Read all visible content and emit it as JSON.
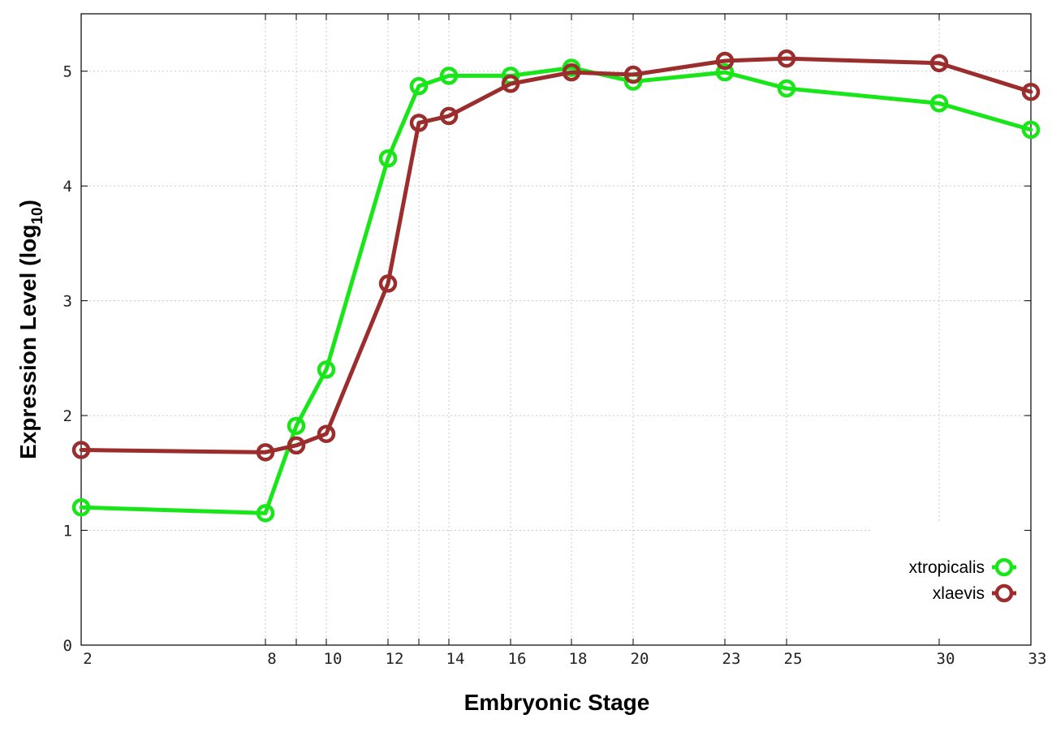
{
  "chart_data": {
    "type": "line",
    "title": "",
    "xlabel": "Embryonic Stage",
    "ylabel": {
      "text": "Expression Level (log",
      "subscript": "10",
      "suffix": ")"
    },
    "x_categories": [
      "2",
      "8",
      "9",
      "10",
      "12",
      "13",
      "14",
      "16",
      "18",
      "20",
      "23",
      "25",
      "30",
      "33"
    ],
    "x_tick_labels": [
      "2",
      "8",
      "10",
      "12",
      "14",
      "16",
      "18",
      "20",
      "23",
      "25",
      "30",
      "33"
    ],
    "y_ticks": [
      "0",
      "1",
      "2",
      "3",
      "4",
      "5"
    ],
    "ylim": [
      0,
      5.5
    ],
    "grid": true,
    "legend_position": "bottom-right",
    "series": [
      {
        "name": "xtropicalis",
        "color": "#19e619",
        "x": [
          "2",
          "8",
          "9",
          "10",
          "12",
          "13",
          "14",
          "16",
          "18",
          "20",
          "23",
          "25",
          "30",
          "33"
        ],
        "values": [
          1.2,
          1.15,
          1.91,
          2.4,
          4.24,
          4.87,
          4.96,
          4.96,
          5.03,
          4.91,
          4.99,
          4.85,
          4.72,
          4.49
        ]
      },
      {
        "name": "xlaevis",
        "color": "#9b2d2d",
        "x": [
          "2",
          "8",
          "9",
          "10",
          "12",
          "13",
          "14",
          "16",
          "18",
          "20",
          "23",
          "25",
          "30",
          "33"
        ],
        "values": [
          1.7,
          1.68,
          1.74,
          1.84,
          3.15,
          4.55,
          4.61,
          4.89,
          4.99,
          4.97,
          5.09,
          5.11,
          5.07,
          4.82
        ]
      }
    ]
  }
}
